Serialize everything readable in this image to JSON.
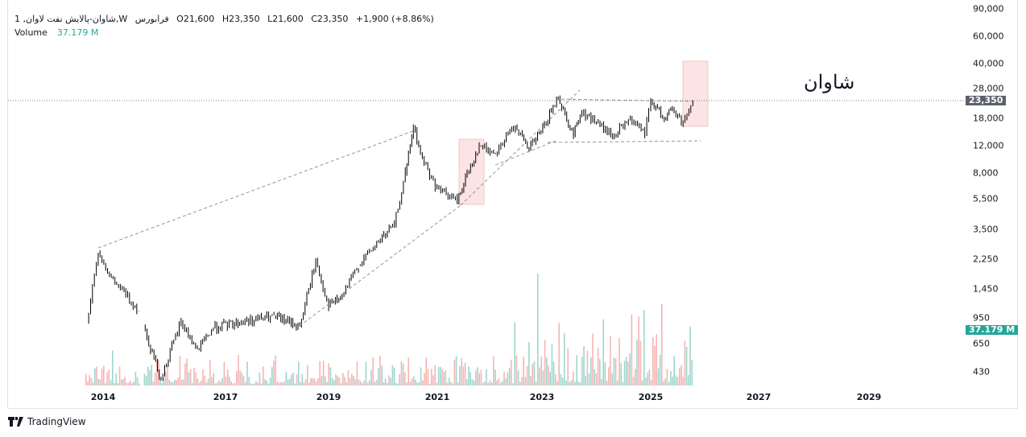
{
  "legend": {
    "symbol": "1 ,شاوان-پالایش نفت لاوان,W",
    "exchange": "فرابورس",
    "open": "O21,600",
    "high": "H23,350",
    "low": "L21,600",
    "close": "C23,350",
    "change": "+1,900 (+8.86%)",
    "volume_label": "Volume",
    "volume_value": "37.179 M"
  },
  "annotation_text": "شاوان",
  "last_price_badge": "23,350",
  "volume_badge": "37.179 M",
  "colors": {
    "up": "#26a69a",
    "down": "#ef5350",
    "candle": "#000000",
    "price_badge": "#5d606b",
    "volume_badge": "#26a69a",
    "highlight": "#fce4e4"
  },
  "brand": "TradingView",
  "chart_data": {
    "type": "candlestick",
    "y_scale": "log",
    "y_ticks": [
      "90,000",
      "60,000",
      "40,000",
      "28,000",
      "18,000",
      "12,000",
      "8,000",
      "5,500",
      "3,500",
      "2,250",
      "1,450",
      "950",
      "650",
      "430"
    ],
    "x_ticks": [
      "2014",
      "2017",
      "2019",
      "2021",
      "2023",
      "2025",
      "2027",
      "2029"
    ],
    "grid": false,
    "last_price": 23350,
    "close_path": [
      [
        2013.6,
        895
      ],
      [
        2013.88,
        2540
      ],
      [
        2014.2,
        1700
      ],
      [
        2014.87,
        1070
      ],
      [
        2014.99,
        840
      ],
      [
        2015.42,
        390
      ],
      [
        2015.91,
        900
      ],
      [
        2016.31,
        590
      ],
      [
        2016.7,
        820
      ],
      [
        2017.31,
        900
      ],
      [
        2017.94,
        970
      ],
      [
        2018.44,
        840
      ],
      [
        2018.75,
        2200
      ],
      [
        2019.0,
        1130
      ],
      [
        2019.25,
        1300
      ],
      [
        2019.55,
        2070
      ],
      [
        2019.92,
        2930
      ],
      [
        2020.21,
        3740
      ],
      [
        2020.41,
        7950
      ],
      [
        2020.56,
        15960
      ],
      [
        2020.69,
        10620
      ],
      [
        2020.96,
        6540
      ],
      [
        2021.38,
        5300
      ],
      [
        2021.57,
        7900
      ],
      [
        2021.8,
        12000
      ],
      [
        2022.11,
        10800
      ],
      [
        2022.49,
        16400
      ],
      [
        2022.72,
        11300
      ],
      [
        2022.98,
        14600
      ],
      [
        2023.3,
        24700
      ],
      [
        2023.58,
        13900
      ],
      [
        2023.7,
        19700
      ],
      [
        2024.0,
        17000
      ],
      [
        2024.3,
        13600
      ],
      [
        2024.59,
        17500
      ],
      [
        2024.89,
        14300
      ],
      [
        2025.0,
        23000
      ],
      [
        2025.25,
        18000
      ],
      [
        2025.4,
        20500
      ],
      [
        2025.6,
        16900
      ],
      [
        2025.78,
        23350
      ]
    ]
  }
}
